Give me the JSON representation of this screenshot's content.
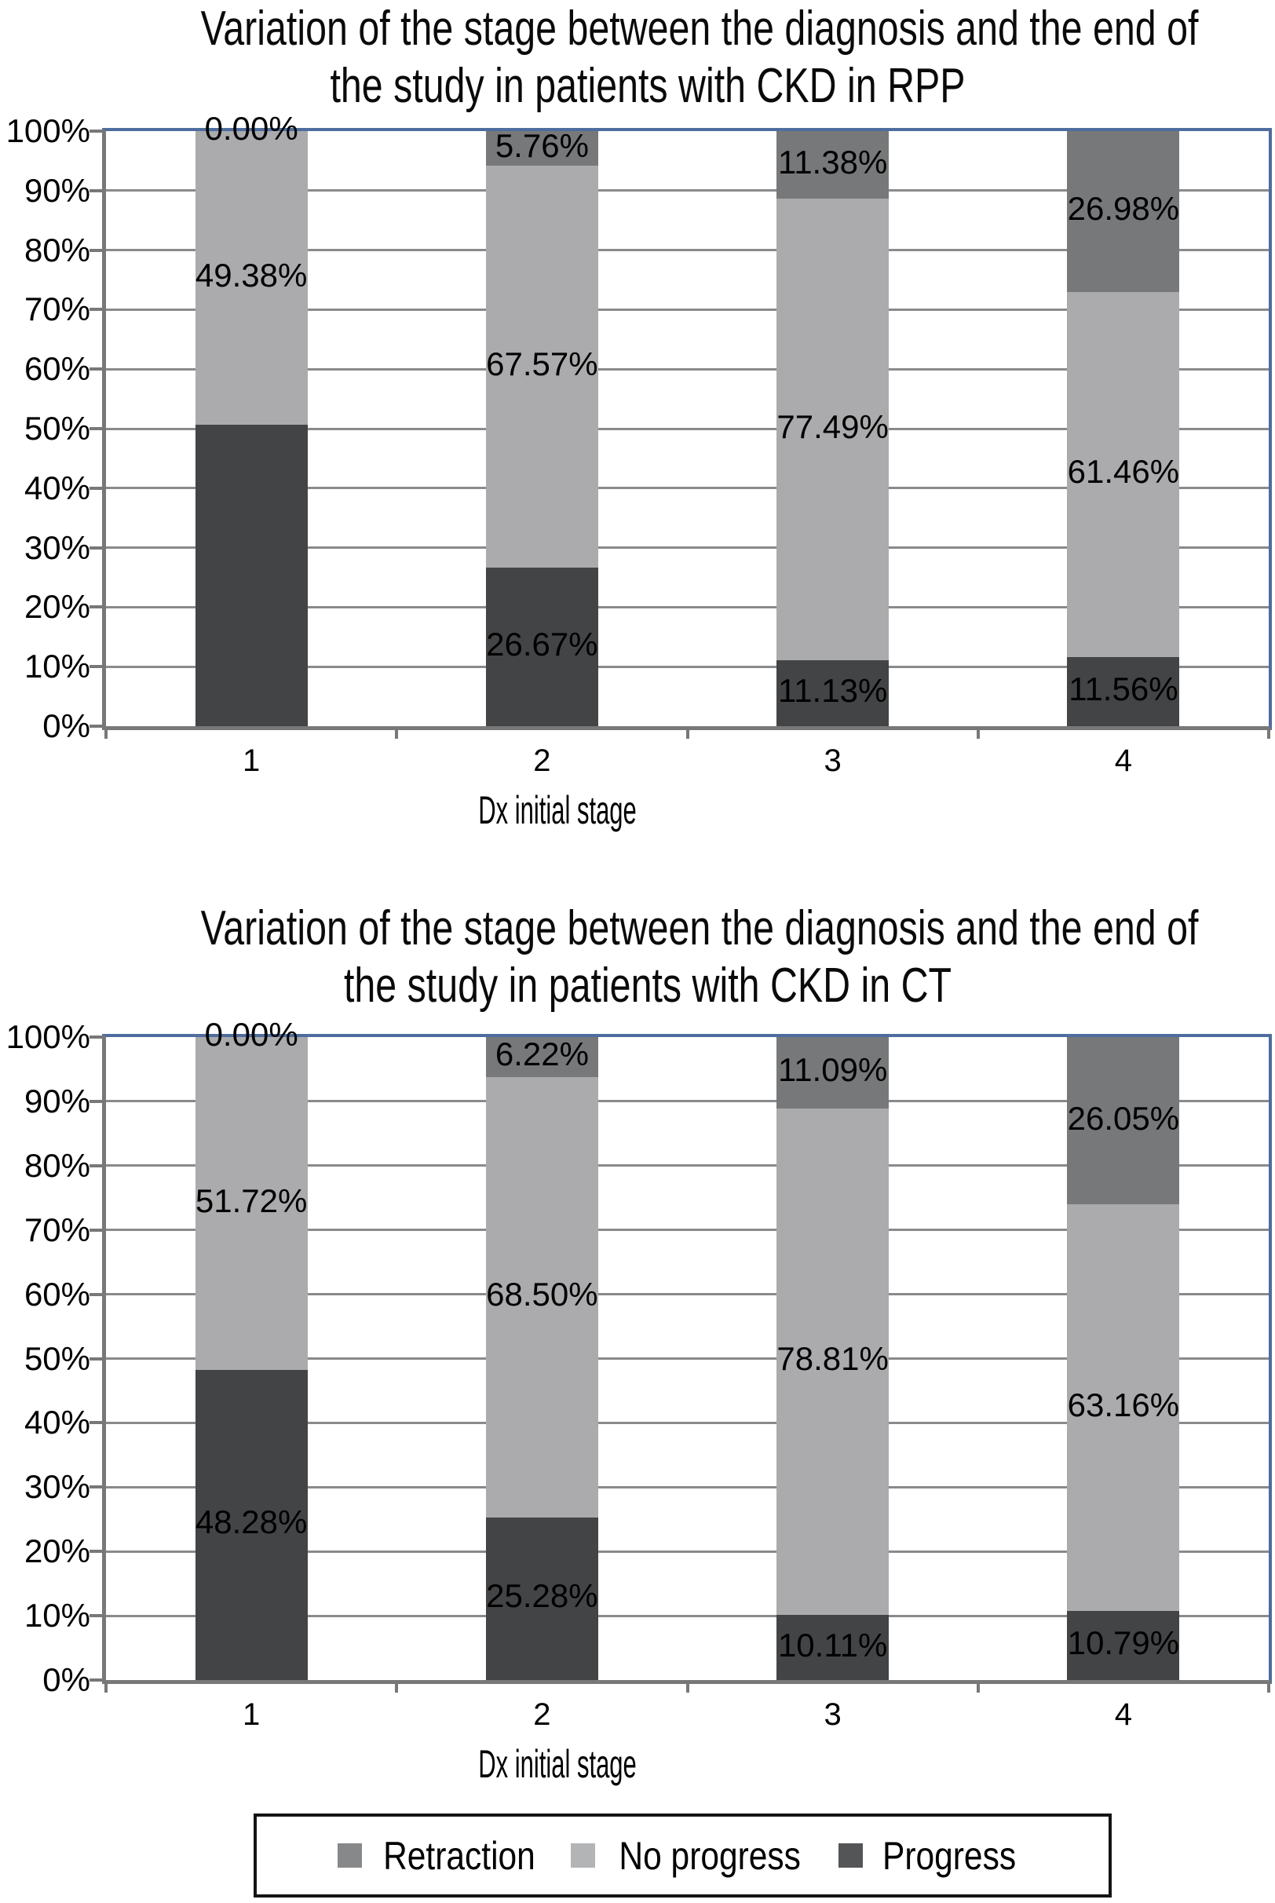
{
  "chart_data": [
    {
      "type": "bar",
      "stacked": true,
      "title": "Variation of the stage between the diagnosis and the end of the study in patients with CKD in RPP",
      "title_lines": [
        "Variation of the stage between the diagnosis and the end of",
        "the study in patients with CKD in RPP"
      ],
      "xlabel": "Dx initial stage",
      "ylabel": "",
      "ylim": [
        0,
        100
      ],
      "grid": true,
      "legend_position": "shared-bottom",
      "categories": [
        "1",
        "2",
        "3",
        "4"
      ],
      "y_tick_labels": [
        "100%",
        "90%",
        "80%",
        "70%",
        "60%",
        "50%",
        "40%",
        "30%",
        "20%",
        "10%",
        "0%"
      ],
      "series": [
        {
          "name": "Progress",
          "color": "#434446",
          "values": [
            50.62,
            26.67,
            11.13,
            11.56
          ],
          "value_labels": [
            "",
            "26.67%",
            "11.13%",
            "11.56%"
          ]
        },
        {
          "name": "No progress",
          "color": "#ababad",
          "values": [
            49.38,
            67.57,
            77.49,
            61.46
          ],
          "value_labels": [
            "49.38%",
            "67.57%",
            "77.49%",
            "61.46%"
          ]
        },
        {
          "name": "Retraction",
          "color": "#77787a",
          "values": [
            0.0,
            5.76,
            11.38,
            26.98
          ],
          "value_labels": [
            "0.00%",
            "5.76%",
            "11.38%",
            "26.98%"
          ]
        }
      ]
    },
    {
      "type": "bar",
      "stacked": true,
      "title": "Variation of the stage between the diagnosis and the end of the study in patients with CKD in CT",
      "title_lines": [
        "Variation of the stage between the diagnosis and the end of",
        "the study in patients with CKD in CT"
      ],
      "xlabel": "Dx initial stage",
      "ylabel": "",
      "ylim": [
        0,
        100
      ],
      "grid": true,
      "legend_position": "shared-bottom",
      "categories": [
        "1",
        "2",
        "3",
        "4"
      ],
      "y_tick_labels": [
        "100%",
        "90%",
        "80%",
        "70%",
        "60%",
        "50%",
        "40%",
        "30%",
        "20%",
        "10%",
        "0%"
      ],
      "series": [
        {
          "name": "Progress",
          "color": "#434446",
          "values": [
            48.28,
            25.28,
            10.11,
            10.79
          ],
          "value_labels": [
            "48.28%",
            "25.28%",
            "10.11%",
            "10.79%"
          ]
        },
        {
          "name": "No progress",
          "color": "#ababad",
          "values": [
            51.72,
            68.5,
            78.81,
            63.16
          ],
          "value_labels": [
            "51.72%",
            "68.50%",
            "78.81%",
            "63.16%"
          ]
        },
        {
          "name": "Retraction",
          "color": "#77787a",
          "values": [
            0.0,
            6.22,
            11.09,
            26.05
          ],
          "value_labels": [
            "0.00%",
            "6.22%",
            "11.09%",
            "26.05%"
          ]
        }
      ]
    }
  ],
  "legend": {
    "items": [
      {
        "label": "Retraction",
        "color": "#87888a"
      },
      {
        "label": "No progress",
        "color": "#b3b4b6"
      },
      {
        "label": "Progress",
        "color": "#545557"
      }
    ]
  },
  "colors": {
    "plot_border_blue": "#4e6d9e",
    "axis_gray": "#787878",
    "gridline_gray": "#8a8a8b"
  }
}
